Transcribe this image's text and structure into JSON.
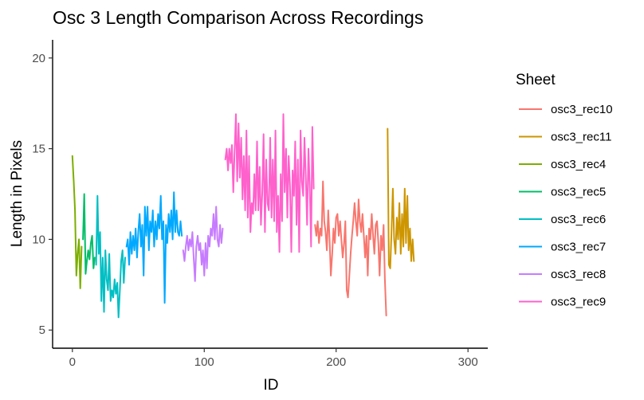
{
  "chart_data": {
    "type": "line",
    "title": "Osc 3 Length Comparison Across Recordings",
    "xlabel": "ID",
    "ylabel": "Length in Pixels",
    "xlim": [
      -15,
      315
    ],
    "ylim": [
      4,
      21
    ],
    "xticks": [
      0,
      100,
      200,
      300
    ],
    "yticks": [
      5,
      10,
      15,
      20
    ],
    "grid": false,
    "legend": {
      "title": "Sheet",
      "position": "right"
    },
    "series": [
      {
        "name": "osc3_rec10",
        "color": "#F8766D",
        "points": [
          [
            184,
            10.8
          ],
          [
            185,
            10.2
          ],
          [
            186,
            11.0
          ],
          [
            187,
            9.8
          ],
          [
            188,
            10.6
          ],
          [
            189,
            10.2
          ],
          [
            190,
            13.2
          ],
          [
            191,
            11.0
          ],
          [
            192,
            10.4
          ],
          [
            193,
            9.4
          ],
          [
            194,
            11.6
          ],
          [
            195,
            10.0
          ],
          [
            196,
            8.0
          ],
          [
            197,
            9.2
          ],
          [
            198,
            10.6
          ],
          [
            199,
            9.8
          ],
          [
            200,
            11.2
          ],
          [
            201,
            11.4
          ],
          [
            202,
            10.2
          ],
          [
            203,
            11.0
          ],
          [
            204,
            10.0
          ],
          [
            205,
            9.0
          ],
          [
            206,
            9.8
          ],
          [
            207,
            11.0
          ],
          [
            208,
            7.2
          ],
          [
            209,
            6.8
          ],
          [
            210,
            8.0
          ],
          [
            211,
            9.2
          ],
          [
            212,
            10.2
          ],
          [
            213,
            11.0
          ],
          [
            214,
            12.0
          ],
          [
            215,
            11.0
          ],
          [
            216,
            10.2
          ],
          [
            217,
            12.2
          ],
          [
            218,
            11.0
          ],
          [
            219,
            10.4
          ],
          [
            220,
            11.4
          ],
          [
            221,
            10.2
          ],
          [
            222,
            9.0
          ],
          [
            223,
            10.2
          ],
          [
            224,
            8.0
          ],
          [
            225,
            10.6
          ],
          [
            226,
            10.0
          ],
          [
            227,
            11.4
          ],
          [
            228,
            10.2
          ],
          [
            229,
            9.2
          ],
          [
            230,
            10.8
          ],
          [
            231,
            11.0
          ],
          [
            232,
            9.8
          ],
          [
            233,
            8.0
          ],
          [
            234,
            10.2
          ],
          [
            235,
            9.4
          ],
          [
            236,
            10.8
          ],
          [
            237,
            7.8
          ],
          [
            238,
            5.8
          ]
        ]
      },
      {
        "name": "osc3_rec11",
        "color": "#CD9600",
        "points": [
          [
            239,
            16.1
          ],
          [
            240,
            8.6
          ],
          [
            241,
            8.4
          ],
          [
            242,
            10.4
          ],
          [
            243,
            12.8
          ],
          [
            244,
            10.0
          ],
          [
            245,
            9.2
          ],
          [
            246,
            11.2
          ],
          [
            247,
            10.0
          ],
          [
            248,
            12.0
          ],
          [
            249,
            9.2
          ],
          [
            250,
            11.4
          ],
          [
            251,
            9.6
          ],
          [
            252,
            12.8
          ],
          [
            253,
            9.8
          ],
          [
            254,
            12.4
          ],
          [
            255,
            9.4
          ],
          [
            256,
            10.6
          ],
          [
            257,
            8.8
          ],
          [
            258,
            10.0
          ],
          [
            259,
            8.8
          ]
        ]
      },
      {
        "name": "osc3_rec4",
        "color": "#7CAE00",
        "points": [
          [
            0,
            14.6
          ],
          [
            1,
            13.2
          ],
          [
            2,
            11.6
          ],
          [
            3,
            8.0
          ],
          [
            4,
            9.2
          ],
          [
            5,
            10.0
          ],
          [
            6,
            7.3
          ],
          [
            7,
            9.6
          ]
        ]
      },
      {
        "name": "osc3_rec5",
        "color": "#00BE67",
        "points": [
          [
            8,
            10.0
          ],
          [
            9,
            12.5
          ],
          [
            10,
            8.1
          ],
          [
            11,
            8.8
          ],
          [
            12,
            9.4
          ],
          [
            13,
            8.9
          ],
          [
            14,
            9.8
          ],
          [
            15,
            10.2
          ],
          [
            16,
            8.4
          ],
          [
            17,
            9.0
          ]
        ]
      },
      {
        "name": "osc3_rec6",
        "color": "#00BFC4",
        "points": [
          [
            18,
            8.6
          ],
          [
            19,
            12.4
          ],
          [
            20,
            9.2
          ],
          [
            21,
            10.4
          ],
          [
            22,
            6.6
          ],
          [
            23,
            9.0
          ],
          [
            24,
            6.0
          ],
          [
            25,
            9.4
          ],
          [
            26,
            7.8
          ],
          [
            27,
            7.2
          ],
          [
            28,
            9.2
          ],
          [
            29,
            6.6
          ],
          [
            30,
            7.2
          ],
          [
            31,
            6.8
          ],
          [
            32,
            7.8
          ],
          [
            33,
            7.0
          ],
          [
            34,
            7.6
          ],
          [
            35,
            5.7
          ],
          [
            36,
            7.2
          ],
          [
            37,
            8.8
          ],
          [
            38,
            9.4
          ],
          [
            39,
            7.6
          ],
          [
            40,
            9.0
          ]
        ]
      },
      {
        "name": "osc3_rec7",
        "color": "#00A9FF",
        "points": [
          [
            41,
            9.6
          ],
          [
            42,
            10.0
          ],
          [
            43,
            8.6
          ],
          [
            44,
            10.4
          ],
          [
            45,
            9.2
          ],
          [
            46,
            10.2
          ],
          [
            47,
            9.4
          ],
          [
            48,
            10.6
          ],
          [
            49,
            9.0
          ],
          [
            50,
            10.4
          ],
          [
            51,
            11.4
          ],
          [
            52,
            9.6
          ],
          [
            53,
            10.8
          ],
          [
            54,
            8.0
          ],
          [
            55,
            11.8
          ],
          [
            56,
            10.2
          ],
          [
            57,
            11.8
          ],
          [
            58,
            9.4
          ],
          [
            59,
            11.0
          ],
          [
            60,
            10.4
          ],
          [
            61,
            11.6
          ],
          [
            62,
            9.6
          ],
          [
            63,
            11.0
          ],
          [
            64,
            10.0
          ],
          [
            65,
            11.4
          ],
          [
            66,
            10.6
          ],
          [
            67,
            12.4
          ],
          [
            68,
            10.0
          ],
          [
            69,
            11.0
          ],
          [
            70,
            6.5
          ],
          [
            71,
            10.8
          ],
          [
            72,
            9.8
          ],
          [
            73,
            11.4
          ],
          [
            74,
            10.4
          ],
          [
            75,
            11.6
          ],
          [
            76,
            10.0
          ],
          [
            77,
            12.6
          ],
          [
            78,
            10.4
          ],
          [
            79,
            11.6
          ],
          [
            80,
            10.4
          ],
          [
            81,
            10.2
          ],
          [
            82,
            11.0
          ],
          [
            83,
            10.2
          ]
        ]
      },
      {
        "name": "osc3_rec8",
        "color": "#C77CFF",
        "points": [
          [
            84,
            9.4
          ],
          [
            85,
            8.8
          ],
          [
            86,
            9.6
          ],
          [
            87,
            10.2
          ],
          [
            88,
            9.4
          ],
          [
            89,
            10.0
          ],
          [
            90,
            9.6
          ],
          [
            91,
            10.4
          ],
          [
            92,
            9.0
          ],
          [
            93,
            7.7
          ],
          [
            94,
            9.6
          ],
          [
            95,
            10.2
          ],
          [
            96,
            9.4
          ],
          [
            97,
            9.8
          ],
          [
            98,
            8.6
          ],
          [
            99,
            9.4
          ],
          [
            100,
            8.0
          ],
          [
            101,
            9.8
          ],
          [
            102,
            8.4
          ],
          [
            103,
            10.2
          ],
          [
            104,
            9.6
          ],
          [
            105,
            10.6
          ],
          [
            106,
            10.2
          ],
          [
            107,
            11.4
          ],
          [
            108,
            10.0
          ],
          [
            109,
            11.8
          ],
          [
            110,
            10.0
          ],
          [
            111,
            9.6
          ],
          [
            112,
            10.8
          ],
          [
            113,
            9.8
          ],
          [
            114,
            10.6
          ]
        ]
      },
      {
        "name": "osc3_rec9",
        "color": "#FF61CC",
        "points": [
          [
            116,
            14.4
          ],
          [
            117,
            15.0
          ],
          [
            118,
            13.8
          ],
          [
            119,
            15.0
          ],
          [
            120,
            14.2
          ],
          [
            121,
            15.2
          ],
          [
            122,
            12.6
          ],
          [
            123,
            14.8
          ],
          [
            124,
            16.9
          ],
          [
            125,
            13.2
          ],
          [
            126,
            16.4
          ],
          [
            127,
            13.4
          ],
          [
            128,
            15.6
          ],
          [
            129,
            12.2
          ],
          [
            130,
            14.6
          ],
          [
            131,
            11.6
          ],
          [
            132,
            16.0
          ],
          [
            133,
            11.2
          ],
          [
            134,
            14.6
          ],
          [
            135,
            10.4
          ],
          [
            136,
            12.0
          ],
          [
            137,
            11.4
          ],
          [
            138,
            13.6
          ],
          [
            139,
            11.6
          ],
          [
            140,
            15.4
          ],
          [
            141,
            11.6
          ],
          [
            142,
            14.0
          ],
          [
            143,
            10.8
          ],
          [
            144,
            12.6
          ],
          [
            145,
            15.8
          ],
          [
            146,
            10.4
          ],
          [
            147,
            14.4
          ],
          [
            148,
            12.0
          ],
          [
            149,
            11.6
          ],
          [
            150,
            15.6
          ],
          [
            151,
            11.2
          ],
          [
            152,
            14.4
          ],
          [
            153,
            11.0
          ],
          [
            154,
            16.0
          ],
          [
            155,
            10.4
          ],
          [
            156,
            12.4
          ],
          [
            157,
            9.3
          ],
          [
            158,
            13.6
          ],
          [
            159,
            11.0
          ],
          [
            160,
            16.9
          ],
          [
            161,
            12.6
          ],
          [
            162,
            15.0
          ],
          [
            163,
            11.2
          ],
          [
            164,
            14.6
          ],
          [
            165,
            13.0
          ],
          [
            166,
            9.3
          ],
          [
            167,
            13.8
          ],
          [
            168,
            12.4
          ],
          [
            169,
            15.4
          ],
          [
            170,
            10.8
          ],
          [
            171,
            14.4
          ],
          [
            172,
            9.3
          ],
          [
            173,
            16.0
          ],
          [
            174,
            13.2
          ],
          [
            175,
            12.4
          ],
          [
            176,
            15.6
          ],
          [
            177,
            13.4
          ],
          [
            178,
            10.8
          ],
          [
            179,
            15.0
          ],
          [
            180,
            13.0
          ],
          [
            181,
            9.6
          ],
          [
            182,
            16.2
          ],
          [
            183,
            12.8
          ]
        ]
      }
    ]
  }
}
